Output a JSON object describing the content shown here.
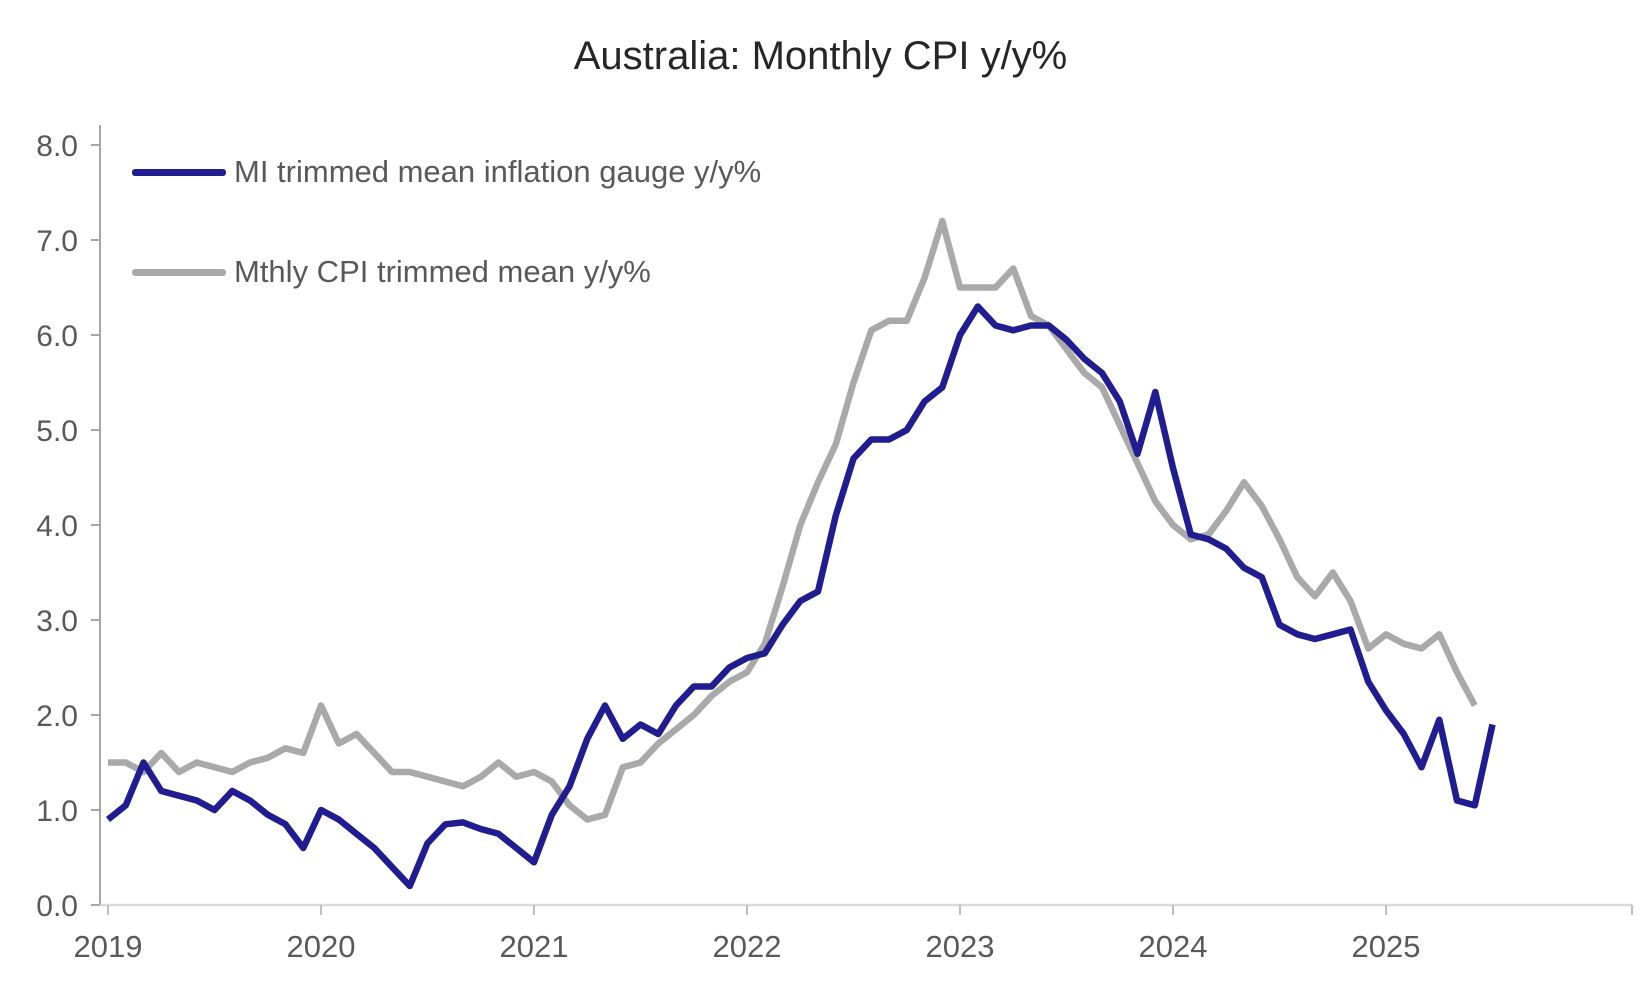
{
  "title": "Australia: Monthly CPI y/y%",
  "legend": {
    "items": [
      {
        "label": "MI trimmed mean inflation gauge y/y%",
        "color": "#1F1D90"
      },
      {
        "label": "Mthly CPI trimmed mean y/y%",
        "color": "#A9A9A9"
      }
    ]
  },
  "axes": {
    "y_tick_labels": [
      "8.0",
      "7.0",
      "6.0",
      "5.0",
      "4.0",
      "3.0",
      "2.0",
      "1.0",
      "0.0"
    ],
    "x_tick_labels": [
      "2019",
      "2020",
      "2021",
      "2022",
      "2023",
      "2024",
      "2025"
    ]
  },
  "chart_data": {
    "type": "line",
    "title": "Australia: Monthly CPI y/y%",
    "x_start": "2019-01",
    "frequency": "monthly",
    "xlabel": "",
    "ylabel": "",
    "ylim": [
      0,
      8
    ],
    "y_tick_step": 1.0,
    "grid": false,
    "legend_position": "upper-left",
    "series": [
      {
        "name": "MI trimmed mean inflation gauge y/y%",
        "color": "#1F1D90",
        "values": [
          0.9,
          1.05,
          1.5,
          1.2,
          1.15,
          1.1,
          1.0,
          1.2,
          1.1,
          0.95,
          0.85,
          0.6,
          1.0,
          0.9,
          0.75,
          0.6,
          0.4,
          0.2,
          0.65,
          0.85,
          0.87,
          0.8,
          0.75,
          0.6,
          0.45,
          0.95,
          1.25,
          1.75,
          2.1,
          1.75,
          1.9,
          1.8,
          2.1,
          2.3,
          2.3,
          2.5,
          2.6,
          2.65,
          2.95,
          3.2,
          3.3,
          4.1,
          4.7,
          4.9,
          4.9,
          5.0,
          5.3,
          5.45,
          6.0,
          6.3,
          6.1,
          6.05,
          6.1,
          6.1,
          5.95,
          5.75,
          5.6,
          5.3,
          4.75,
          5.4,
          4.6,
          3.9,
          3.85,
          3.75,
          3.55,
          3.45,
          2.95,
          2.85,
          2.8,
          2.85,
          2.9,
          2.35,
          2.05,
          1.8,
          1.45,
          1.95,
          1.1,
          1.05,
          1.9
        ]
      },
      {
        "name": "Mthly CPI trimmed mean y/y%",
        "color": "#A9A9A9",
        "values": [
          1.5,
          1.5,
          1.4,
          1.6,
          1.4,
          1.5,
          1.45,
          1.4,
          1.5,
          1.55,
          1.65,
          1.6,
          2.1,
          1.7,
          1.8,
          1.6,
          1.4,
          1.4,
          1.35,
          1.3,
          1.25,
          1.35,
          1.5,
          1.35,
          1.4,
          1.3,
          1.05,
          0.9,
          0.95,
          1.45,
          1.5,
          1.7,
          1.85,
          2.0,
          2.2,
          2.35,
          2.45,
          2.75,
          3.35,
          4.0,
          4.45,
          4.85,
          5.5,
          6.05,
          6.15,
          6.15,
          6.6,
          7.2,
          6.5,
          6.5,
          6.5,
          6.7,
          6.2,
          6.1,
          5.85,
          5.6,
          5.45,
          5.05,
          4.65,
          4.25,
          4.0,
          3.85,
          3.9,
          4.15,
          4.45,
          4.2,
          3.85,
          3.45,
          3.25,
          3.5,
          3.2,
          2.7,
          2.85,
          2.75,
          2.7,
          2.85,
          2.45,
          2.1
        ]
      }
    ]
  },
  "colors": {
    "title_text": "#262626",
    "tick_text": "#595959",
    "y_axis_line": "#A6A6A6",
    "x_axis_line": "#D9D9D9",
    "tick_mark": "#BFBFBF",
    "background": "#FFFFFF"
  }
}
